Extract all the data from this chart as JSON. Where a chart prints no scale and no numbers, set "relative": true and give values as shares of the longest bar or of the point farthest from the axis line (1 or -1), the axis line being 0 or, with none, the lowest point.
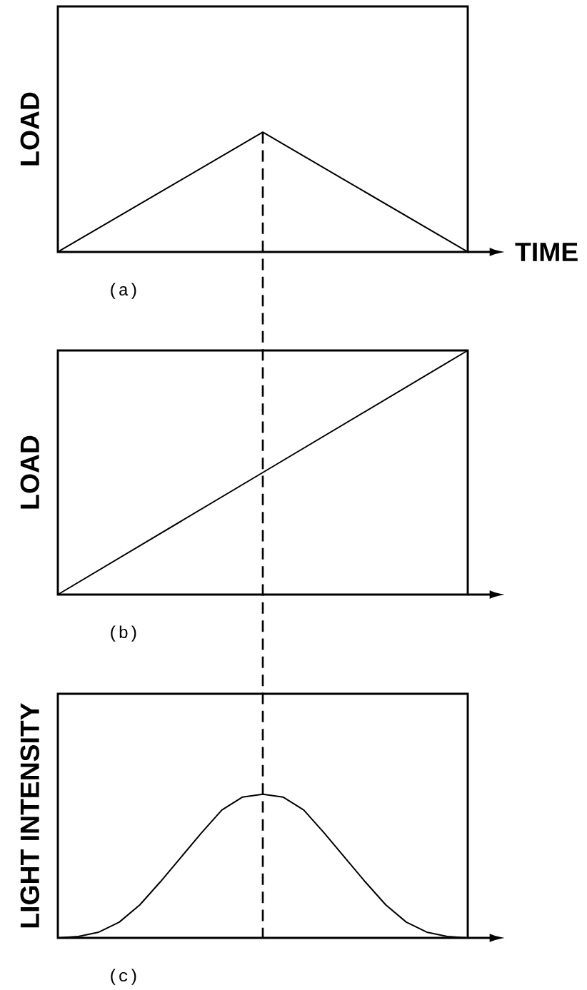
{
  "chart_data": [
    {
      "type": "line",
      "title": "(a)",
      "xlabel": "TIME",
      "ylabel": "LOAD",
      "relative": true,
      "categories": [
        null,
        null,
        null
      ],
      "series": [
        {
          "color": "#000000",
          "values": [
            0,
            1,
            0
          ]
        }
      ]
    },
    {
      "type": "line",
      "title": "(b)",
      "ylabel": "LOAD",
      "relative": true,
      "categories": [
        null,
        null,
        null
      ],
      "series": [
        {
          "color": "#000000",
          "values": [
            0,
            0.5,
            1
          ]
        }
      ]
    },
    {
      "type": "line",
      "title": "(c)",
      "ylabel": "LIGHT INTENSITY",
      "relative": true,
      "categories": [
        null,
        null,
        null,
        null,
        null,
        null,
        null,
        null,
        null,
        null,
        null,
        null,
        null,
        null,
        null,
        null,
        null,
        null,
        null,
        null,
        null
      ],
      "series": [
        {
          "color": "#000000",
          "values": [
            0,
            0.01,
            0.04,
            0.11,
            0.23,
            0.39,
            0.56,
            0.73,
            0.89,
            0.98,
            1,
            0.98,
            0.89,
            0.73,
            0.56,
            0.39,
            0.23,
            0.11,
            0.04,
            0.01,
            0
          ]
        }
      ]
    }
  ]
}
